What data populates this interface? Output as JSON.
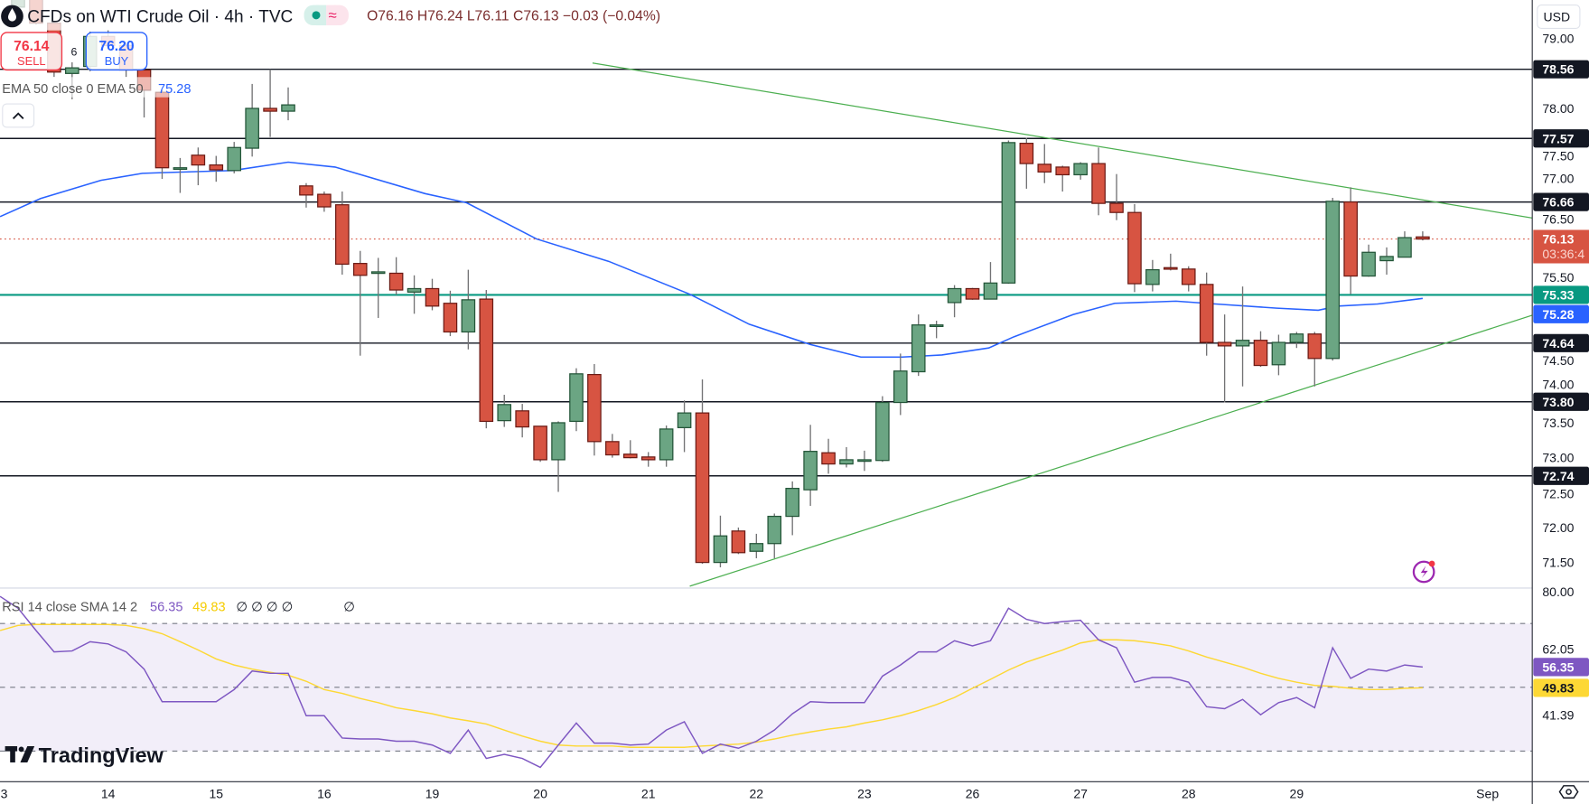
{
  "header": {
    "title": "CFDs on WTI Crude Oil · 4h · TVC",
    "ohlc": "O76.16 H76.24 L76.11 C76.13 −0.03 (−0.04%)",
    "status_icon": "market-open-dot",
    "status_icon2": "delayed-data-icon",
    "status_symbol": "≈",
    "symbol_icon": "oil-drop-icon"
  },
  "trade": {
    "sell_price": "76.14",
    "sell_label": "SELL",
    "spread": "6",
    "buy_price": "76.20",
    "buy_label": "BUY"
  },
  "ema_legend": {
    "label": "EMA 50 close 0 EMA 50",
    "value": "75.28"
  },
  "rsi_legend": {
    "label": "RSI 14 close SMA 14 2",
    "rsi_value": "56.35",
    "sma_value": "49.83",
    "empty_values": "∅ ∅ ∅ ∅",
    "empty_value2": "∅"
  },
  "axis": {
    "currency": "USD",
    "countdown": "03:36:4",
    "price_ticks": [
      "79.00",
      "78.00",
      "77.50",
      "77.00",
      "76.50",
      "75.50",
      "74.50",
      "74.00",
      "73.50",
      "73.00",
      "72.50",
      "72.00",
      "71.50"
    ],
    "rsi_ticks": [
      "80.00",
      "62.05",
      "41.39"
    ]
  },
  "logo": "TradingView",
  "colors": {
    "up": "#6ba583",
    "up_border": "#225437",
    "down": "#d75442",
    "down_border": "#6b1a14",
    "wick": "#737375",
    "ema": "#2962ff",
    "level": "#131722",
    "support_teal": "#089981",
    "trendline": "#4caf50",
    "rsi": "#7e57c2",
    "rsi_sma": "#fdd835",
    "last_price": "#d75442"
  },
  "chart_data": [
    {
      "type": "candlestick",
      "title": "CFDs on WTI Crude Oil · 4h · TVC",
      "x_ticks": [
        {
          "label": "3",
          "bar": -1
        },
        {
          "label": "14",
          "bar": 5
        },
        {
          "label": "15",
          "bar": 11
        },
        {
          "label": "16",
          "bar": 17
        },
        {
          "label": "19",
          "bar": 23
        },
        {
          "label": "20",
          "bar": 29
        },
        {
          "label": "21",
          "bar": 35
        },
        {
          "label": "22",
          "bar": 41
        },
        {
          "label": "23",
          "bar": 47
        },
        {
          "label": "26",
          "bar": 53
        },
        {
          "label": "27",
          "bar": 59
        },
        {
          "label": "28",
          "bar": 65
        },
        {
          "label": "29",
          "bar": 71
        },
        {
          "label": "Sep",
          "bar": 81.6
        }
      ],
      "ylim": [
        71.2,
        79.55
      ],
      "candles_ohlc": [
        [
          79.45,
          79.65,
          79.4,
          79.6
        ],
        [
          79.6,
          79.65,
          79.2,
          79.22
        ],
        [
          79.22,
          79.25,
          78.45,
          78.52
        ],
        [
          78.5,
          78.66,
          78.13,
          78.58
        ],
        [
          78.6,
          79.1,
          78.53,
          79.03
        ],
        [
          79.03,
          79.12,
          78.85,
          78.9
        ],
        [
          78.9,
          78.95,
          78.45,
          78.55
        ],
        [
          78.55,
          78.58,
          77.87,
          78.26
        ],
        [
          78.23,
          78.26,
          76.99,
          77.15
        ],
        [
          77.14,
          77.29,
          76.79,
          77.15
        ],
        [
          77.33,
          77.44,
          76.9,
          77.19
        ],
        [
          77.19,
          77.32,
          76.95,
          77.12
        ],
        [
          77.11,
          77.52,
          77.07,
          77.44
        ],
        [
          77.43,
          78.35,
          77.31,
          78.0
        ],
        [
          78.0,
          78.56,
          77.59,
          77.96
        ],
        [
          77.96,
          78.3,
          77.83,
          78.05
        ],
        [
          76.89,
          76.93,
          76.58,
          76.76
        ],
        [
          76.77,
          76.81,
          76.52,
          76.59
        ],
        [
          76.62,
          76.81,
          75.62,
          75.77
        ],
        [
          75.78,
          75.96,
          74.46,
          75.61
        ],
        [
          75.65,
          75.86,
          75.0,
          75.66
        ],
        [
          75.64,
          75.87,
          75.33,
          75.4
        ],
        [
          75.37,
          75.61,
          75.06,
          75.42
        ],
        [
          75.42,
          75.56,
          75.11,
          75.17
        ],
        [
          75.21,
          75.39,
          74.74,
          74.8
        ],
        [
          74.8,
          75.69,
          74.55,
          75.26
        ],
        [
          75.27,
          75.4,
          73.42,
          73.52
        ],
        [
          73.53,
          73.9,
          73.44,
          73.76
        ],
        [
          73.67,
          73.77,
          73.29,
          73.44
        ],
        [
          73.45,
          73.45,
          72.94,
          72.97
        ],
        [
          72.97,
          73.52,
          72.51,
          73.5
        ],
        [
          73.52,
          74.28,
          73.38,
          74.2
        ],
        [
          74.19,
          74.34,
          73.03,
          73.23
        ],
        [
          73.23,
          73.34,
          73.0,
          73.04
        ],
        [
          73.05,
          73.25,
          72.99,
          73.0
        ],
        [
          73.01,
          73.08,
          72.87,
          72.97
        ],
        [
          72.97,
          73.46,
          72.87,
          73.41
        ],
        [
          73.43,
          73.82,
          73.08,
          73.64
        ],
        [
          73.64,
          74.12,
          71.48,
          71.5
        ],
        [
          71.5,
          72.17,
          71.43,
          71.88
        ],
        [
          71.95,
          72.0,
          71.62,
          71.64
        ],
        [
          71.66,
          71.91,
          71.56,
          71.77
        ],
        [
          71.77,
          72.2,
          71.56,
          72.16
        ],
        [
          72.16,
          72.66,
          71.89,
          72.56
        ],
        [
          72.54,
          73.47,
          72.31,
          73.09
        ],
        [
          73.07,
          73.27,
          72.77,
          72.91
        ],
        [
          72.91,
          73.15,
          72.86,
          72.97
        ],
        [
          72.96,
          73.1,
          72.81,
          72.97
        ],
        [
          72.96,
          73.88,
          72.94,
          73.79
        ],
        [
          73.79,
          74.49,
          73.61,
          74.24
        ],
        [
          74.23,
          75.05,
          74.17,
          74.9
        ],
        [
          74.89,
          74.96,
          74.71,
          74.9
        ],
        [
          75.22,
          75.47,
          75.01,
          75.42
        ],
        [
          75.42,
          75.43,
          75.26,
          75.27
        ],
        [
          75.27,
          75.8,
          75.27,
          75.5
        ],
        [
          75.5,
          77.54,
          75.49,
          77.51
        ],
        [
          77.5,
          77.58,
          76.85,
          77.21
        ],
        [
          77.2,
          77.49,
          76.93,
          77.09
        ],
        [
          77.16,
          77.18,
          76.81,
          77.05
        ],
        [
          77.05,
          77.23,
          76.98,
          77.21
        ],
        [
          77.21,
          77.44,
          76.47,
          76.64
        ],
        [
          76.64,
          77.06,
          76.4,
          76.51
        ],
        [
          76.51,
          76.63,
          75.37,
          75.49
        ],
        [
          75.48,
          75.83,
          75.38,
          75.69
        ],
        [
          75.72,
          75.92,
          75.68,
          75.71
        ],
        [
          75.7,
          75.74,
          75.38,
          75.48
        ],
        [
          75.48,
          75.65,
          74.46,
          74.65
        ],
        [
          74.65,
          75.05,
          73.79,
          74.6
        ],
        [
          74.6,
          75.45,
          74.02,
          74.68
        ],
        [
          74.68,
          74.81,
          74.3,
          74.32
        ],
        [
          74.33,
          74.76,
          74.18,
          74.65
        ],
        [
          74.65,
          74.8,
          74.57,
          74.77
        ],
        [
          74.77,
          74.8,
          74.02,
          74.42
        ],
        [
          74.42,
          76.72,
          74.39,
          76.67
        ],
        [
          76.66,
          76.87,
          75.34,
          75.6
        ],
        [
          75.6,
          76.05,
          75.59,
          75.94
        ],
        [
          75.82,
          76.01,
          75.62,
          75.88
        ],
        [
          75.87,
          76.24,
          75.87,
          76.15
        ],
        [
          76.16,
          76.24,
          76.11,
          76.13
        ]
      ],
      "ema50": [
        [
          -1,
          76.45
        ],
        [
          1.25,
          76.71
        ],
        [
          4.6,
          76.97
        ],
        [
          6.9,
          77.07
        ],
        [
          8,
          77.08
        ],
        [
          11.9,
          77.11
        ],
        [
          15,
          77.23
        ],
        [
          17.6,
          77.16
        ],
        [
          22.6,
          76.78
        ],
        [
          24.9,
          76.65
        ],
        [
          28.8,
          76.13
        ],
        [
          32.8,
          75.81
        ],
        [
          37.3,
          75.34
        ],
        [
          40.6,
          74.91
        ],
        [
          44,
          74.62
        ],
        [
          46.8,
          74.44
        ],
        [
          49.1,
          74.44
        ],
        [
          51.3,
          74.47
        ],
        [
          53.9,
          74.57
        ],
        [
          55.3,
          74.73
        ],
        [
          58.6,
          75.05
        ],
        [
          60.9,
          75.21
        ],
        [
          64.3,
          75.24
        ],
        [
          66.5,
          75.2
        ],
        [
          69.9,
          75.14
        ],
        [
          72.2,
          75.11
        ],
        [
          73.3,
          75.17
        ],
        [
          75.5,
          75.2
        ],
        [
          78,
          75.28
        ]
      ],
      "levels": [
        "78.56",
        "77.57",
        "76.66",
        "74.64",
        "73.80",
        "72.74"
      ],
      "support_level": "75.33",
      "last_price": "76.13",
      "ema_last": "75.28",
      "trendlines": [
        {
          "name": "upper",
          "from": [
            31.9,
            78.65
          ],
          "to": [
            84.1,
            76.43
          ]
        },
        {
          "name": "lower",
          "from": [
            37.3,
            71.16
          ],
          "to": [
            84.1,
            75.04
          ]
        }
      ]
    },
    {
      "type": "line",
      "title": "RSI 14 close SMA 14 2",
      "ylim": [
        20,
        82
      ],
      "bands": [
        30,
        50,
        70
      ],
      "rsi_start_bar": -1,
      "rsi": [
        78.5,
        74.8,
        67.8,
        61.1,
        61.4,
        64.3,
        63.6,
        61.1,
        55.7,
        45.5,
        45.5,
        45.5,
        45.5,
        49.3,
        55.1,
        54.4,
        54.4,
        41.1,
        41.1,
        34.1,
        33.8,
        33.8,
        33.1,
        33.1,
        31.9,
        29.3,
        36.6,
        27.7,
        29.0,
        27.7,
        24.9,
        31.9,
        38.8,
        32.5,
        32.5,
        31.9,
        32.2,
        36.6,
        39.2,
        29.3,
        32.2,
        30.9,
        33.1,
        36.6,
        41.7,
        45.5,
        45.2,
        45.2,
        45.2,
        53.5,
        57.0,
        61.1,
        61.1,
        64.6,
        63.0,
        64.6,
        74.8,
        71.3,
        70.0,
        70.6,
        71.0,
        64.9,
        62.4,
        51.6,
        53.1,
        53.1,
        51.6,
        43.9,
        43.3,
        46.2,
        41.4,
        45.2,
        46.8,
        43.6,
        62.4,
        52.8,
        55.7,
        55.1,
        57.0,
        56.35
      ],
      "sma": [
        67.8,
        69.4,
        69.7,
        69.7,
        69.7,
        69.7,
        69.7,
        69.4,
        68.4,
        66.8,
        64.3,
        61.7,
        58.9,
        57.0,
        55.7,
        54.7,
        53.8,
        51.9,
        49.3,
        48.1,
        46.5,
        45.2,
        43.6,
        42.7,
        41.7,
        40.4,
        39.5,
        38.5,
        36.6,
        34.7,
        33.1,
        31.9,
        31.6,
        31.6,
        31.6,
        31.2,
        31.2,
        31.2,
        31.2,
        31.6,
        31.9,
        32.2,
        32.8,
        33.8,
        35.0,
        36.0,
        36.9,
        37.6,
        38.8,
        39.8,
        41.1,
        42.7,
        44.6,
        46.8,
        49.7,
        52.5,
        55.4,
        57.9,
        59.8,
        61.7,
        63.9,
        64.9,
        64.9,
        64.6,
        63.9,
        63.0,
        61.4,
        59.5,
        57.9,
        56.3,
        54.4,
        52.8,
        51.6,
        50.6,
        50.3,
        49.7,
        49.3,
        49.3,
        49.7,
        49.83
      ]
    }
  ]
}
